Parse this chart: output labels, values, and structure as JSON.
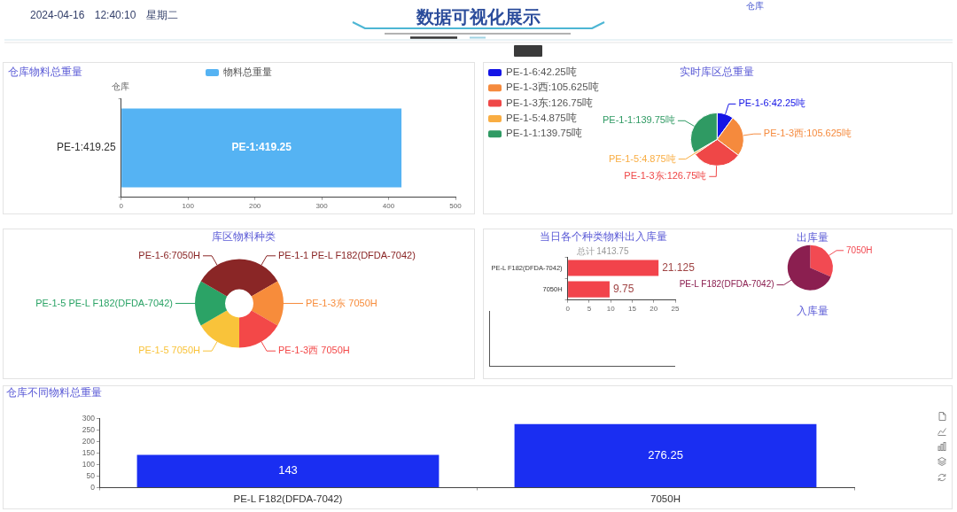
{
  "chart_data": [
    {
      "type": "other",
      "title": "数据可视化展示",
      "annotations": [
        "2024-04-16 12:40:10 星期二",
        "仓库"
      ]
    },
    {
      "type": "bar",
      "orientation": "horizontal",
      "title": "仓库物料总重量",
      "ylabel": "仓库",
      "categories": [
        "PE-1:419.25"
      ],
      "series": [
        {
          "name": "物料总重量",
          "color": "#55b3f3",
          "values": [
            419.25
          ],
          "value_labels": [
            "PE-1:419.25"
          ]
        }
      ],
      "xlim": [
        0,
        500
      ],
      "xticks": [
        0,
        100,
        200,
        300,
        400,
        500
      ],
      "legend": "top"
    },
    {
      "type": "pie",
      "title": "实时库区总重量",
      "categories": [
        "PE-1-6:42.25吨",
        "PE-1-3西:105.625吨",
        "PE-1-3东:126.75吨",
        "PE-1-5:4.875吨",
        "PE-1-1:139.75吨"
      ],
      "values": [
        42.25,
        105.625,
        126.75,
        4.875,
        139.75
      ],
      "colors": [
        "#1414e6",
        "#f58a3d",
        "#ef4747",
        "#f9ad42",
        "#2f9a63"
      ],
      "legend": "top left"
    },
    {
      "type": "donut",
      "title": "库区物料种类",
      "categories": [
        "PE-1-1 PE-L F182(DFDA-7042)",
        "PE-1-3东 7050H",
        "PE-1-3西 7050H",
        "PE-1-5 7050H",
        "PE-1-5 PE-L F182(DFDA-7042)",
        "PE-1-6:7050H"
      ],
      "values": [
        16.67,
        16.67,
        16.66,
        16.67,
        16.67,
        16.66
      ],
      "colors": [
        "#8a2626",
        "#f78c3b",
        "#f34848",
        "#f9c33a",
        "#2ba366",
        "#8a2626"
      ]
    },
    {
      "type": "bar",
      "orientation": "horizontal",
      "title": "当日各个种类物料出入库量",
      "subtitle": "总计 1413.75",
      "categories": [
        "PE-L F182(DFDA-7042)",
        "7050H"
      ],
      "values": [
        21.125,
        9.75
      ],
      "color": "#f2434b",
      "xlim": [
        0,
        25
      ],
      "xticks": [
        0,
        5,
        10,
        15,
        20,
        25
      ],
      "data_labels": true
    },
    {
      "type": "pie",
      "title": "出库量",
      "categories": [
        "7050H",
        "PE-L F182(DFDA-7042)"
      ],
      "values": [
        31.6,
        68.4
      ],
      "colors": [
        "#f24a52",
        "#8b1f50"
      ],
      "annotations": [
        "入库量"
      ]
    },
    {
      "type": "bar",
      "title": "仓库不同物料总重量",
      "categories": [
        "PE-L F182(DFDA-7042)",
        "7050H"
      ],
      "values": [
        143,
        276.25
      ],
      "color": "#1a2ef2",
      "ylim": [
        0,
        300
      ],
      "yticks": [
        0,
        50,
        100,
        150,
        200,
        250,
        300
      ],
      "data_labels": true
    }
  ]
}
